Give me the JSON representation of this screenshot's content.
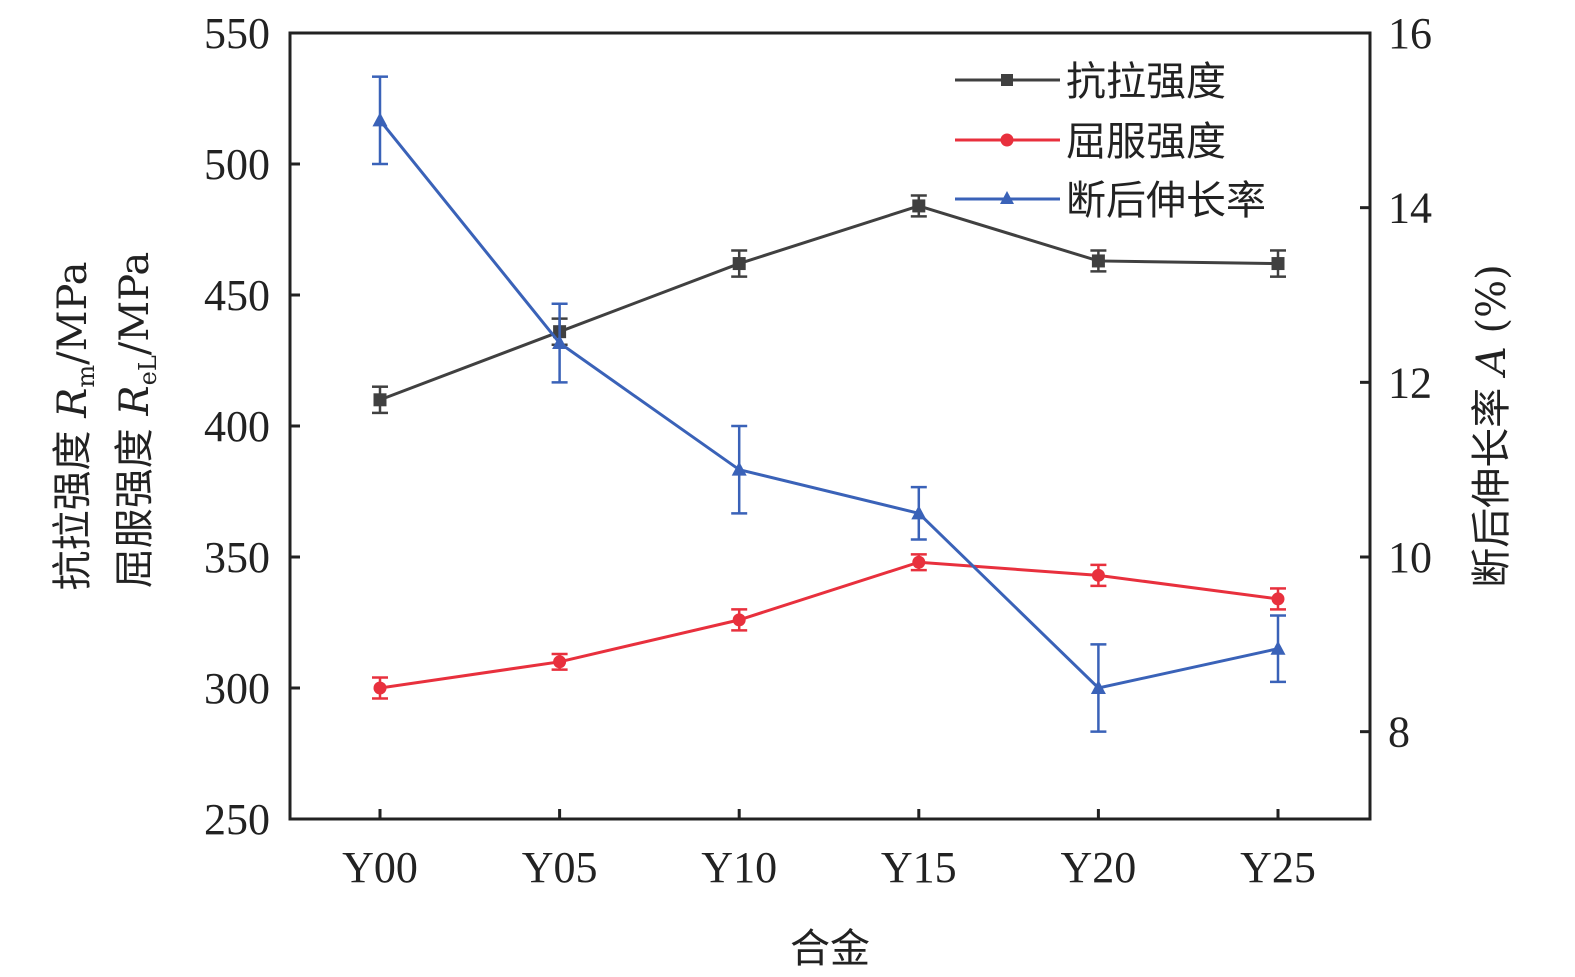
{
  "chart_data": {
    "type": "line",
    "categories": [
      "Y00",
      "Y05",
      "Y10",
      "Y15",
      "Y20",
      "Y25"
    ],
    "xlabel": "合金",
    "y_left": {
      "range": [
        250,
        550
      ],
      "ticks": [
        "250",
        "300",
        "350",
        "400",
        "450",
        "500",
        "550"
      ],
      "label_line1": {
        "prefix": "抗拉强度 ",
        "symbol": "R",
        "sub": "m",
        "suffix": "/MPa"
      },
      "label_line2": {
        "prefix": "屈服强度 ",
        "symbol": "R",
        "sub": "eL",
        "suffix": "/MPa"
      }
    },
    "y_right": {
      "range": [
        7,
        16
      ],
      "ticks": [
        "8",
        "10",
        "12",
        "14",
        "16"
      ],
      "label": {
        "prefix": "断后伸长率 ",
        "symbol": "A",
        "suffix": " (%)"
      }
    },
    "series": [
      {
        "name": "抗拉强度",
        "axis": "left",
        "color": "#404040",
        "marker": "square",
        "values": [
          410,
          436,
          462,
          484,
          463,
          462
        ],
        "errors": [
          5,
          5,
          5,
          4,
          4,
          5
        ]
      },
      {
        "name": "屈服强度",
        "axis": "left",
        "color": "#e8303d",
        "marker": "circle",
        "values": [
          300,
          310,
          326,
          348,
          343,
          334
        ],
        "errors": [
          4,
          3,
          4,
          3,
          4,
          4
        ]
      },
      {
        "name": "断后伸长率",
        "axis": "right",
        "color": "#3a62b8",
        "marker": "triangle",
        "values": [
          15.0,
          12.45,
          11.0,
          10.5,
          8.5,
          8.95
        ],
        "errors": [
          0.5,
          0.45,
          0.5,
          0.3,
          0.5,
          0.38
        ]
      }
    ]
  }
}
